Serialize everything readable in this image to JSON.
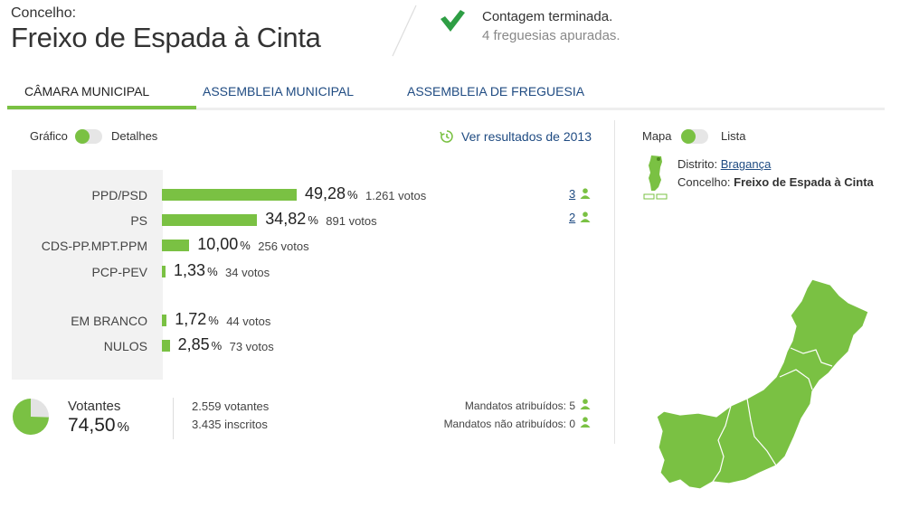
{
  "header": {
    "label": "Concelho:",
    "title": "Freixo de Espada à Cinta",
    "status_title": "Contagem terminada.",
    "status_sub": "4 freguesias apuradas."
  },
  "tabs": [
    {
      "label": "CÂMARA MUNICIPAL",
      "active": true
    },
    {
      "label": "ASSEMBLEIA MUNICIPAL",
      "active": false
    },
    {
      "label": "ASSEMBLEIA DE FREGUESIA",
      "active": false
    }
  ],
  "view_toggle": {
    "left": "Gráfico",
    "right": "Detalhes"
  },
  "history_link": "Ver resultados de 2013",
  "map_toggle": {
    "left": "Mapa",
    "right": "Lista"
  },
  "results": [
    {
      "party": "PPD/PSD",
      "percent": 49.28,
      "percent_text": "49,28",
      "votes": "1.261 votos",
      "seats": "3"
    },
    {
      "party": "PS",
      "percent": 34.82,
      "percent_text": "34,82",
      "votes": "891 votos",
      "seats": "2"
    },
    {
      "party": "CDS-PP.MPT.PPM",
      "percent": 10.0,
      "percent_text": "10,00",
      "votes": "256 votos"
    },
    {
      "party": "PCP-PEV",
      "percent": 1.33,
      "percent_text": "1,33",
      "votes": "34 votos"
    },
    {
      "party": "EM BRANCO",
      "percent": 1.72,
      "percent_text": "1,72",
      "votes": "44 votos"
    },
    {
      "party": "NULOS",
      "percent": 2.85,
      "percent_text": "2,85",
      "votes": "73 votos"
    }
  ],
  "percent_sign": "%",
  "turnout": {
    "label": "Votantes",
    "value_text": "74,50",
    "value": 74.5,
    "voters": "2.559 votantes",
    "registered": "3.435 inscritos"
  },
  "mandates": {
    "assigned": "Mandatos atribuídos: 5",
    "unassigned": "Mandatos não atribuídos: 0"
  },
  "location": {
    "district_label": "Distrito:",
    "district_value": "Bragança",
    "county_label": "Concelho:",
    "county_value": "Freixo de Espada à Cinta"
  },
  "colors": {
    "accent": "#7ac143",
    "link": "#1f4b82",
    "panel": "#f2f2f2"
  },
  "icons": {
    "status": "checkmark-icon",
    "history": "history-clock-icon",
    "seats": "person-icon"
  }
}
